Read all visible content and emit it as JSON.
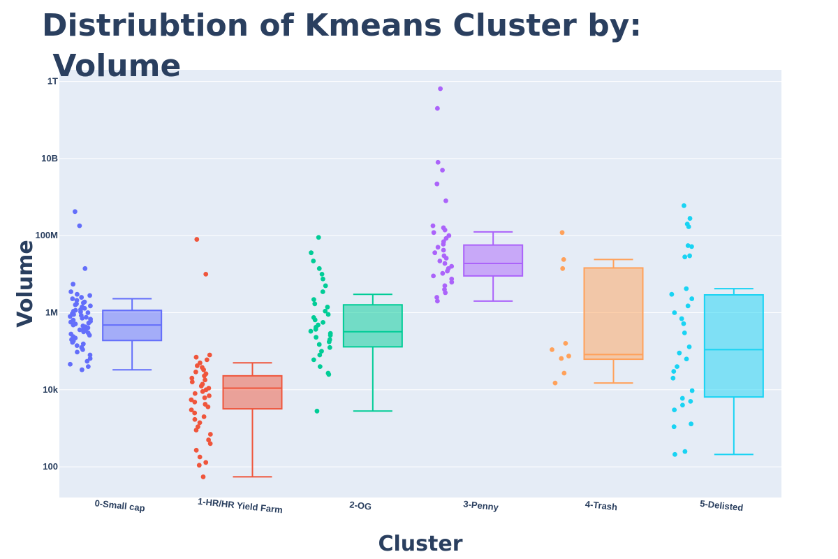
{
  "chart_data": {
    "type": "box",
    "title": "Distriubtion of Kmeans Cluster by:\n Volume",
    "xlabel": "Cluster",
    "ylabel": "Volume",
    "y_scale": "log",
    "ylim": [
      16,
      2000000000000
    ],
    "y_ticks": [
      {
        "value": 100,
        "label": "100"
      },
      {
        "value": 10000,
        "label": "10k"
      },
      {
        "value": 1000000,
        "label": "1M"
      },
      {
        "value": 100000000,
        "label": "100M"
      },
      {
        "value": 10000000000,
        "label": "10B"
      },
      {
        "value": 1000000000000,
        "label": "1T"
      }
    ],
    "grid": true,
    "legend": "none",
    "boxpoints": "all",
    "categories": [
      "0-Small cap",
      "1-HR/HR Yield Farm",
      "2-OG",
      "3-Penny",
      "4-Trash",
      "5-Delisted"
    ],
    "series": [
      {
        "category": "0-Small cap",
        "color": "#636efa",
        "lower_fence": 33000,
        "q1": 190000,
        "median": 480000,
        "q3": 1150000,
        "upper_fence": 2300000,
        "points": [
          420000000,
          180000000,
          14000000,
          5500000,
          3500000,
          3000000,
          2800000,
          2500000,
          2300000,
          2100000,
          1900000,
          1800000,
          1700000,
          1600000,
          1500000,
          1400000,
          1300000,
          1200000,
          1150000,
          1100000,
          1050000,
          1000000,
          950000,
          900000,
          850000,
          800000,
          760000,
          720000,
          680000,
          640000,
          600000,
          570000,
          540000,
          510000,
          480000,
          455000,
          430000,
          405000,
          380000,
          360000,
          340000,
          320000,
          300000,
          280000,
          260000,
          240000,
          220000,
          200000,
          185000,
          170000,
          155000,
          140000,
          125000,
          110000,
          95000,
          80000,
          65000,
          55000,
          46000,
          40000,
          33000
        ]
      },
      {
        "category": "1-HR/HR Yield Farm",
        "color": "#ef553b",
        "lower_fence": 55,
        "q1": 3200,
        "median": 11000,
        "q3": 23000,
        "upper_fence": 50000,
        "points": [
          80000000,
          10000000,
          80000,
          70000,
          60000,
          50000,
          42000,
          38000,
          33000,
          29000,
          26000,
          23000,
          20000,
          18000,
          16000,
          14000,
          12500,
          11000,
          10000,
          9000,
          8000,
          7000,
          6200,
          5500,
          4800,
          4200,
          3600,
          3000,
          2500,
          2000,
          1700,
          1400,
          1100,
          900,
          700,
          500,
          400,
          270,
          180,
          130,
          110,
          55
        ]
      },
      {
        "category": "2-OG",
        "color": "#00cc96",
        "lower_fence": 2800,
        "q1": 130000,
        "median": 320000,
        "q3": 1600000,
        "upper_fence": 3000000,
        "points": [
          90000000,
          36000000,
          22000000,
          14000000,
          10000000,
          7500000,
          5000000,
          3500000,
          2200000,
          1700000,
          1400000,
          1100000,
          900000,
          750000,
          650000,
          560000,
          480000,
          420000,
          370000,
          330000,
          290000,
          260000,
          230000,
          200000,
          175000,
          150000,
          125000,
          100000,
          80000,
          60000,
          40000,
          25000,
          27000,
          2800
        ]
      },
      {
        "category": "3-Penny",
        "color": "#ab63fa",
        "lower_fence": 2000000,
        "q1": 9000000,
        "median": 19000000,
        "q3": 57000000,
        "upper_fence": 125000000,
        "points": [
          650000000000,
          200000000000,
          8000000000,
          5000000000,
          2200000000,
          800000000,
          180000000,
          160000000,
          140000000,
          120000000,
          100000000,
          85000000,
          70000000,
          60000000,
          50000000,
          42000000,
          36000000,
          30000000,
          26000000,
          22000000,
          19000000,
          16000000,
          14000000,
          12000000,
          10500000,
          9000000,
          7500000,
          6200000,
          5000000,
          4000000,
          3300000,
          2500000,
          2000000
        ]
      },
      {
        "category": "4-Trash",
        "color": "#ffa15a",
        "lower_fence": 15000,
        "q1": 62000,
        "median": 82000,
        "q3": 14500000,
        "upper_fence": 24000000,
        "points": [
          120000000,
          24000000,
          14000000,
          160000,
          110000,
          75000,
          65000,
          27000,
          15000
        ]
      },
      {
        "category": "5-Delisted",
        "color": "#19d3f3",
        "lower_fence": 210,
        "q1": 6500,
        "median": 110000,
        "q3": 2900000,
        "upper_fence": 4200000,
        "points": [
          600000000,
          280000000,
          200000000,
          170000000,
          55000000,
          52000000,
          30000000,
          28000000,
          4200000,
          3000000,
          2300000,
          1500000,
          1000000,
          700000,
          520000,
          300000,
          130000,
          90000,
          63000,
          40000,
          30000,
          20000,
          9500,
          6000,
          5000,
          4000,
          3000,
          1300,
          1100,
          250,
          210
        ]
      }
    ]
  }
}
